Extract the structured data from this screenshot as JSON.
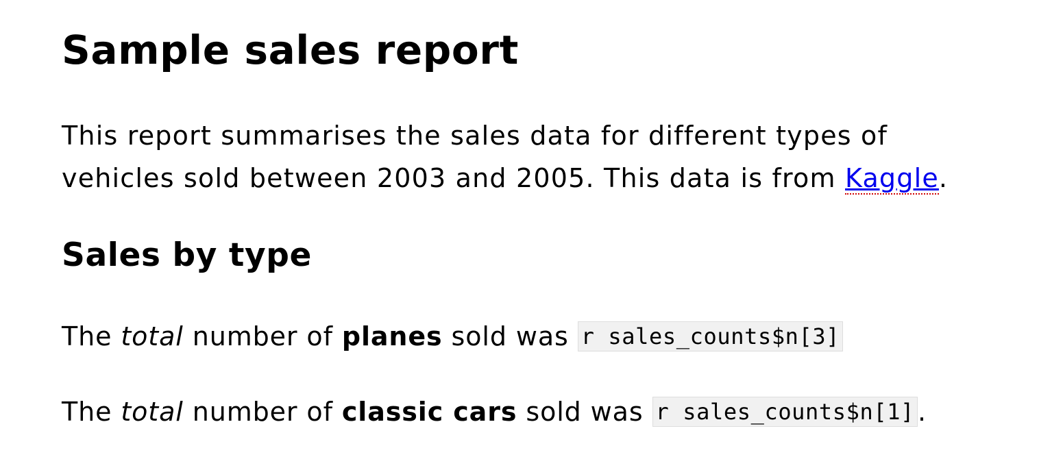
{
  "title": "Sample sales report",
  "intro": {
    "line1": "This report summarises the sales data for different types of",
    "line2_before_link": "vehicles sold between 2003 and 2005. This data is from ",
    "link_text": "Kaggle",
    "line2_after_link": "."
  },
  "section_heading": "Sales by type",
  "stats": [
    {
      "prefix": "The ",
      "emphasis": "total",
      "middle": " number of ",
      "bold": "planes",
      "suffix": " sold was ",
      "code": "r sales_counts$n[3]",
      "end": ""
    },
    {
      "prefix": "The ",
      "emphasis": "total",
      "middle": " number of ",
      "bold": "classic cars",
      "suffix": " sold was ",
      "code": "r sales_counts$n[1]",
      "end": "."
    }
  ],
  "colors": {
    "link": "#0000ee",
    "spellcheck_underline": "#d00000",
    "code_background": "#f1f1f1"
  }
}
